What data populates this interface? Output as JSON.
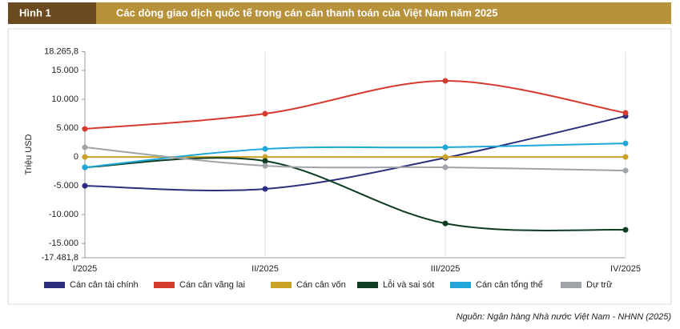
{
  "figure_label": "Hình 1",
  "source": "Nguồn: Ngân hàng Nhà nước Việt Nam - NHNN (2025)",
  "chart_data": {
    "type": "line",
    "title": "Các dòng giao dịch quốc tế trong cán cân thanh toán của Việt Nam năm 2025",
    "y_label": "Triệu USD",
    "categories": [
      "I/2025",
      "II/2025",
      "III/2025",
      "IV/2025"
    ],
    "ylim": [
      -17481.8,
      18265.8
    ],
    "yticks": [
      {
        "value": -17481.8,
        "label": "-17.481,8"
      },
      {
        "value": -15000,
        "label": "-15.000"
      },
      {
        "value": -10000,
        "label": "-10.000"
      },
      {
        "value": -5000,
        "label": "-5.000"
      },
      0,
      {
        "value": 5000,
        "label": "5.000"
      },
      {
        "value": 10000,
        "label": "10.000"
      },
      {
        "value": 15000,
        "label": "15.000"
      },
      {
        "value": 18265.8,
        "label": "18.265,8"
      }
    ],
    "smooth": true,
    "series": [
      {
        "name": "Cán cân tài chính",
        "color": "#2b2f7e",
        "values": [
          -5000,
          -5550,
          -150,
          7080
        ]
      },
      {
        "name": "Cán cân vãng lai",
        "color": "#d63a2f",
        "values": [
          4860,
          7500,
          13190,
          7640
        ]
      },
      {
        "name": "Cán cân vốn",
        "color": "#c9a227",
        "values": [
          0,
          0,
          0,
          0
        ]
      },
      {
        "name": "Lỗi và sai sót",
        "color": "#0d3d22",
        "values": [
          -1800,
          -700,
          -11530,
          -12640
        ]
      },
      {
        "name": "Cán cân tổng thể",
        "color": "#1ea7d8",
        "values": [
          -1800,
          1390,
          1670,
          2360
        ]
      },
      {
        "name": "Dự trữ",
        "color": "#a0a4a8",
        "values": [
          1670,
          -1530,
          -1800,
          -2360
        ]
      }
    ]
  }
}
